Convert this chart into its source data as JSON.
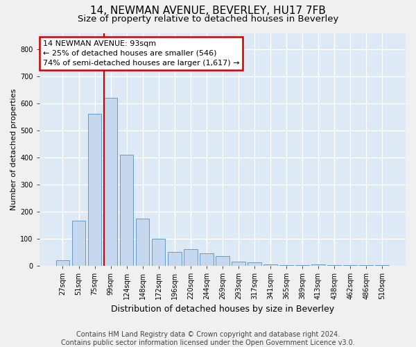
{
  "title": "14, NEWMAN AVENUE, BEVERLEY, HU17 7FB",
  "subtitle": "Size of property relative to detached houses in Beverley",
  "xlabel": "Distribution of detached houses by size in Beverley",
  "ylabel": "Number of detached properties",
  "categories": [
    "27sqm",
    "51sqm",
    "75sqm",
    "99sqm",
    "124sqm",
    "148sqm",
    "172sqm",
    "196sqm",
    "220sqm",
    "244sqm",
    "269sqm",
    "293sqm",
    "317sqm",
    "341sqm",
    "365sqm",
    "389sqm",
    "413sqm",
    "438sqm",
    "462sqm",
    "486sqm",
    "510sqm"
  ],
  "bar_heights": [
    20,
    165,
    560,
    620,
    410,
    175,
    100,
    50,
    60,
    46,
    36,
    15,
    13,
    5,
    2,
    2,
    5,
    2,
    2,
    2,
    2
  ],
  "bar_color": "#c5d8ee",
  "bar_edge_color": "#6699cc",
  "ylim": [
    0,
    860
  ],
  "yticks": [
    0,
    100,
    200,
    300,
    400,
    500,
    600,
    700,
    800
  ],
  "bg_color": "#dde9f5",
  "grid_color": "#ffffff",
  "fig_bg_color": "#f0f0f0",
  "annotation_text": "14 NEWMAN AVENUE: 93sqm\n← 25% of detached houses are smaller (546)\n74% of semi-detached houses are larger (1,617) →",
  "annotation_box_facecolor": "#ffffff",
  "annotation_box_edgecolor": "#cc0000",
  "redline_color": "#cc0000",
  "footer": "Contains HM Land Registry data © Crown copyright and database right 2024.\nContains public sector information licensed under the Open Government Licence v3.0.",
  "title_fontsize": 11,
  "subtitle_fontsize": 9.5,
  "xlabel_fontsize": 9,
  "ylabel_fontsize": 8,
  "tick_fontsize": 7,
  "annotation_fontsize": 8,
  "footer_fontsize": 7
}
